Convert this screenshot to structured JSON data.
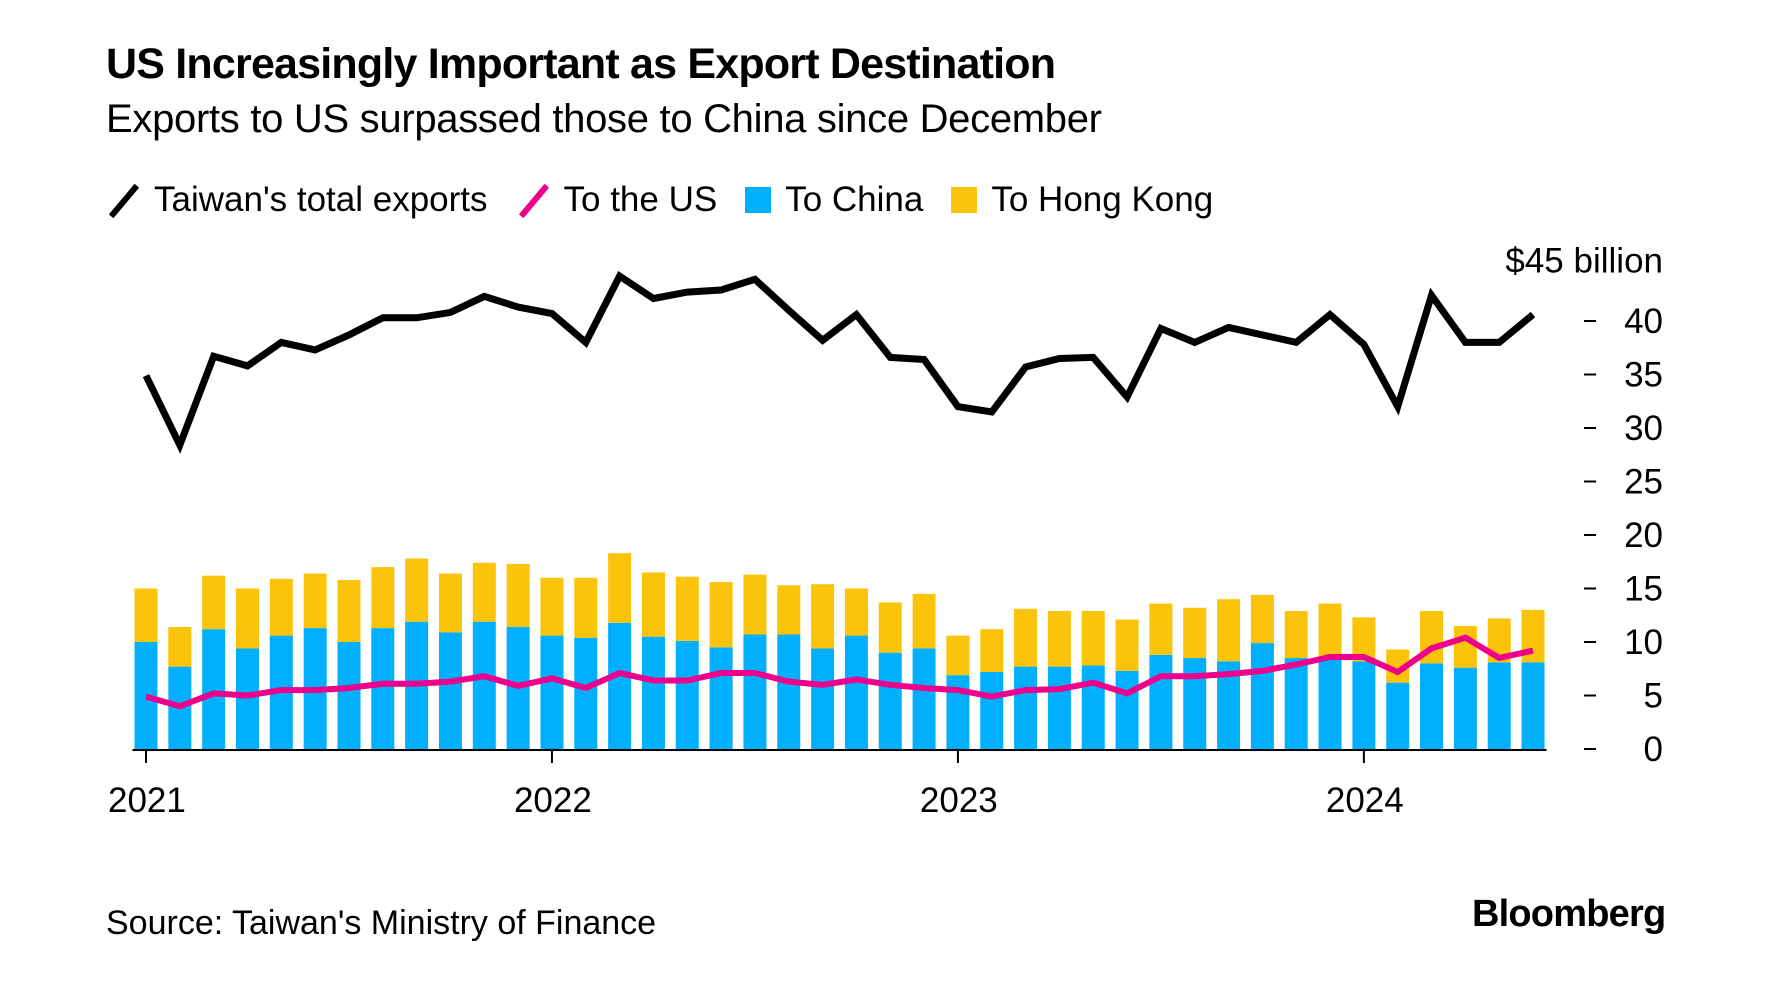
{
  "header": {
    "title": "US Increasingly Important as Export Destination",
    "subtitle": "Exports to US surpassed those to China since December"
  },
  "legend": [
    {
      "label": "Taiwan's total exports",
      "kind": "line",
      "color": "#000000",
      "icon": "line-icon"
    },
    {
      "label": "To the US",
      "kind": "line",
      "color": "#ec008c",
      "icon": "line-icon"
    },
    {
      "label": "To China",
      "kind": "square",
      "color": "#00b0ff",
      "icon": "square-icon"
    },
    {
      "label": "To Hong Kong",
      "kind": "square",
      "color": "#fcc30b",
      "icon": "square-icon"
    }
  ],
  "footer": {
    "source": "Source: Taiwan's Ministry of Finance",
    "logo": "Bloomberg"
  },
  "chart_data": {
    "type": "bar",
    "subtype": "stacked bar with line overlays",
    "title": "US Increasingly Important as Export Destination",
    "subtitle": "Exports to US surpassed those to China since December",
    "xlabel": "",
    "ylabel": "$45 billion",
    "y_unit_label": "$45 billion",
    "ylim": [
      0,
      45
    ],
    "yticks": [
      0,
      5,
      10,
      15,
      20,
      25,
      30,
      35,
      40
    ],
    "y_axis_side": "right",
    "grid": false,
    "legend_position": "top-left",
    "x_tick_labels": [
      {
        "label": "2021",
        "index": 0
      },
      {
        "label": "2022",
        "index": 12
      },
      {
        "label": "2023",
        "index": 24
      },
      {
        "label": "2024",
        "index": 36
      }
    ],
    "categories": [
      "2021-01",
      "2021-02",
      "2021-03",
      "2021-04",
      "2021-05",
      "2021-06",
      "2021-07",
      "2021-08",
      "2021-09",
      "2021-10",
      "2021-11",
      "2021-12",
      "2022-01",
      "2022-02",
      "2022-03",
      "2022-04",
      "2022-05",
      "2022-06",
      "2022-07",
      "2022-08",
      "2022-09",
      "2022-10",
      "2022-11",
      "2022-12",
      "2023-01",
      "2023-02",
      "2023-03",
      "2023-04",
      "2023-05",
      "2023-06",
      "2023-07",
      "2023-08",
      "2023-09",
      "2023-10",
      "2023-11",
      "2023-12",
      "2024-01",
      "2024-02",
      "2024-03",
      "2024-04",
      "2024-05",
      "2024-06"
    ],
    "series": [
      {
        "name": "To China",
        "type": "bar",
        "stack": "a",
        "color": "#00b0ff",
        "values": [
          10.0,
          7.7,
          11.2,
          9.4,
          10.6,
          11.3,
          10.0,
          11.3,
          11.9,
          10.9,
          11.9,
          11.4,
          10.6,
          10.4,
          11.8,
          10.5,
          10.1,
          9.5,
          10.7,
          10.7,
          9.4,
          10.6,
          9.0,
          9.4,
          6.9,
          7.2,
          7.7,
          7.7,
          7.8,
          7.3,
          8.8,
          8.5,
          8.2,
          9.9,
          8.5,
          8.5,
          8.2,
          6.2,
          8.0,
          7.6,
          8.1,
          8.1
        ]
      },
      {
        "name": "To Hong Kong",
        "type": "bar",
        "stack": "a",
        "color": "#fcc30b",
        "values": [
          5.0,
          3.7,
          5.0,
          5.6,
          5.3,
          5.1,
          5.8,
          5.7,
          5.9,
          5.5,
          5.5,
          5.9,
          5.4,
          5.6,
          6.5,
          6.0,
          6.0,
          6.1,
          5.6,
          4.6,
          6.0,
          4.4,
          4.7,
          5.1,
          3.7,
          4.0,
          5.4,
          5.2,
          5.1,
          4.8,
          4.8,
          4.7,
          5.8,
          4.5,
          4.4,
          5.1,
          4.1,
          3.1,
          4.9,
          3.9,
          4.1,
          4.9
        ]
      },
      {
        "name": "To the US",
        "type": "line",
        "color": "#ec008c",
        "values": [
          4.9,
          4.0,
          5.2,
          5.0,
          5.5,
          5.5,
          5.7,
          6.1,
          6.1,
          6.3,
          6.8,
          5.9,
          6.6,
          5.7,
          7.1,
          6.4,
          6.4,
          7.1,
          7.1,
          6.3,
          6.0,
          6.5,
          6.0,
          5.7,
          5.5,
          4.9,
          5.5,
          5.6,
          6.2,
          5.2,
          6.8,
          6.8,
          7.0,
          7.3,
          7.9,
          8.6,
          8.6,
          7.2,
          9.4,
          10.4,
          8.5,
          9.2
        ]
      },
      {
        "name": "Taiwan's total exports",
        "type": "line",
        "color": "#000000",
        "values": [
          34.9,
          28.4,
          36.7,
          35.8,
          38.0,
          37.3,
          38.7,
          40.3,
          40.3,
          40.8,
          42.3,
          41.3,
          40.7,
          38.0,
          44.2,
          42.1,
          42.7,
          42.9,
          43.9,
          41.0,
          38.2,
          40.6,
          36.6,
          36.4,
          32.0,
          31.5,
          35.7,
          36.5,
          36.6,
          32.9,
          39.3,
          38.0,
          39.4,
          38.7,
          38.0,
          40.6,
          37.8,
          32.0,
          42.4,
          38.0,
          38.0,
          40.6
        ]
      }
    ]
  }
}
